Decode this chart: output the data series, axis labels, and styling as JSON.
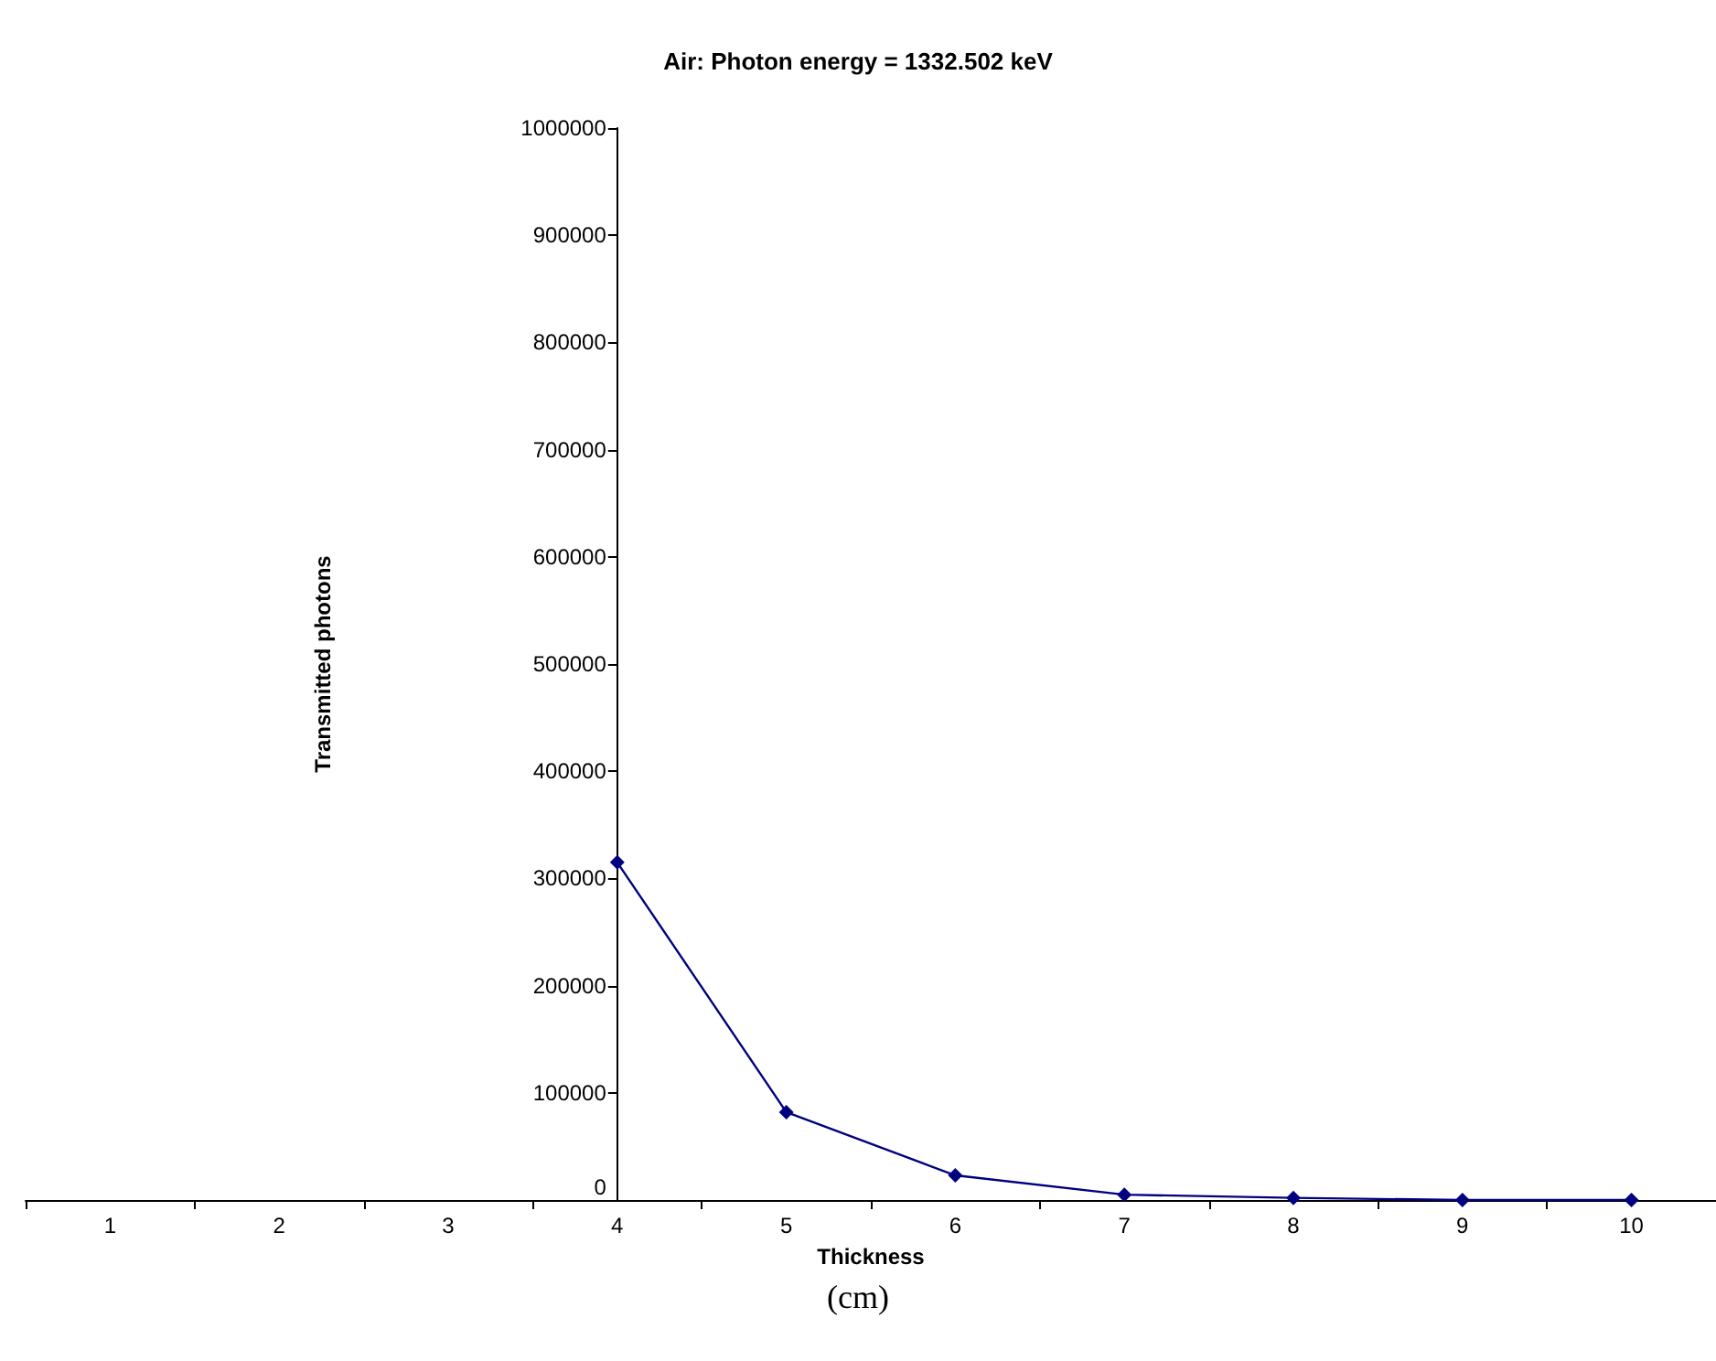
{
  "chart_data": {
    "type": "line",
    "title": "Air: Photon energy = 1332.502 keV",
    "xlabel": "Thickness",
    "ylabel": "Transmitted photons",
    "annotations": [
      "(cm)"
    ],
    "categories": [
      "1",
      "2",
      "3",
      "4",
      "5",
      "6",
      "7",
      "8",
      "9",
      "10"
    ],
    "series": [
      {
        "color": "#000080",
        "values": [
          null,
          null,
          null,
          315000,
          82000,
          23000,
          5000,
          2000,
          0,
          0
        ]
      }
    ],
    "ylim": [
      0,
      1000000
    ],
    "yticks": [
      0,
      100000,
      200000,
      300000,
      400000,
      500000,
      600000,
      700000,
      800000,
      900000,
      1000000
    ],
    "grid": false,
    "marker": "diamond",
    "line_style": "solid"
  }
}
